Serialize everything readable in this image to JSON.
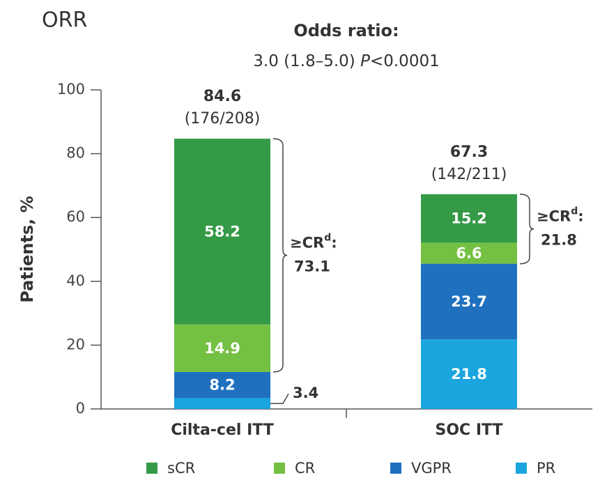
{
  "chart_data": {
    "type": "stacked_bar",
    "title": "ORR",
    "subtitle_heading": "Odds ratio:",
    "subtitle_parts": [
      "3.0 (1.8–5.0) ",
      "P",
      "<0.0001"
    ],
    "ylabel": "Patients, %",
    "categories": [
      "Cilta-cel ITT",
      "SOC ITT"
    ],
    "series": [
      {
        "name": "sCR",
        "color": "#349a46",
        "values": [
          58.2,
          15.2
        ]
      },
      {
        "name": "CR",
        "color": "#74c043",
        "values": [
          14.9,
          6.6
        ]
      },
      {
        "name": "VGPR",
        "color": "#1f70bf",
        "values": [
          8.2,
          23.7
        ]
      },
      {
        "name": "PR",
        "color": "#1aa5de",
        "values": [
          3.4,
          21.8
        ]
      }
    ],
    "totals": [
      84.6,
      67.3
    ],
    "totals_n": [
      "(176/208)",
      "(142/211)"
    ],
    "cr_brackets": [
      {
        "label": "≥CR",
        "sup": "d",
        "punct": ":",
        "value": 73.1
      },
      {
        "label": "≥CR",
        "sup": "d",
        "punct": ":",
        "value": 21.8
      }
    ],
    "ylim": [
      0,
      100
    ],
    "yticks": [
      0,
      20,
      40,
      60,
      80,
      100
    ]
  }
}
